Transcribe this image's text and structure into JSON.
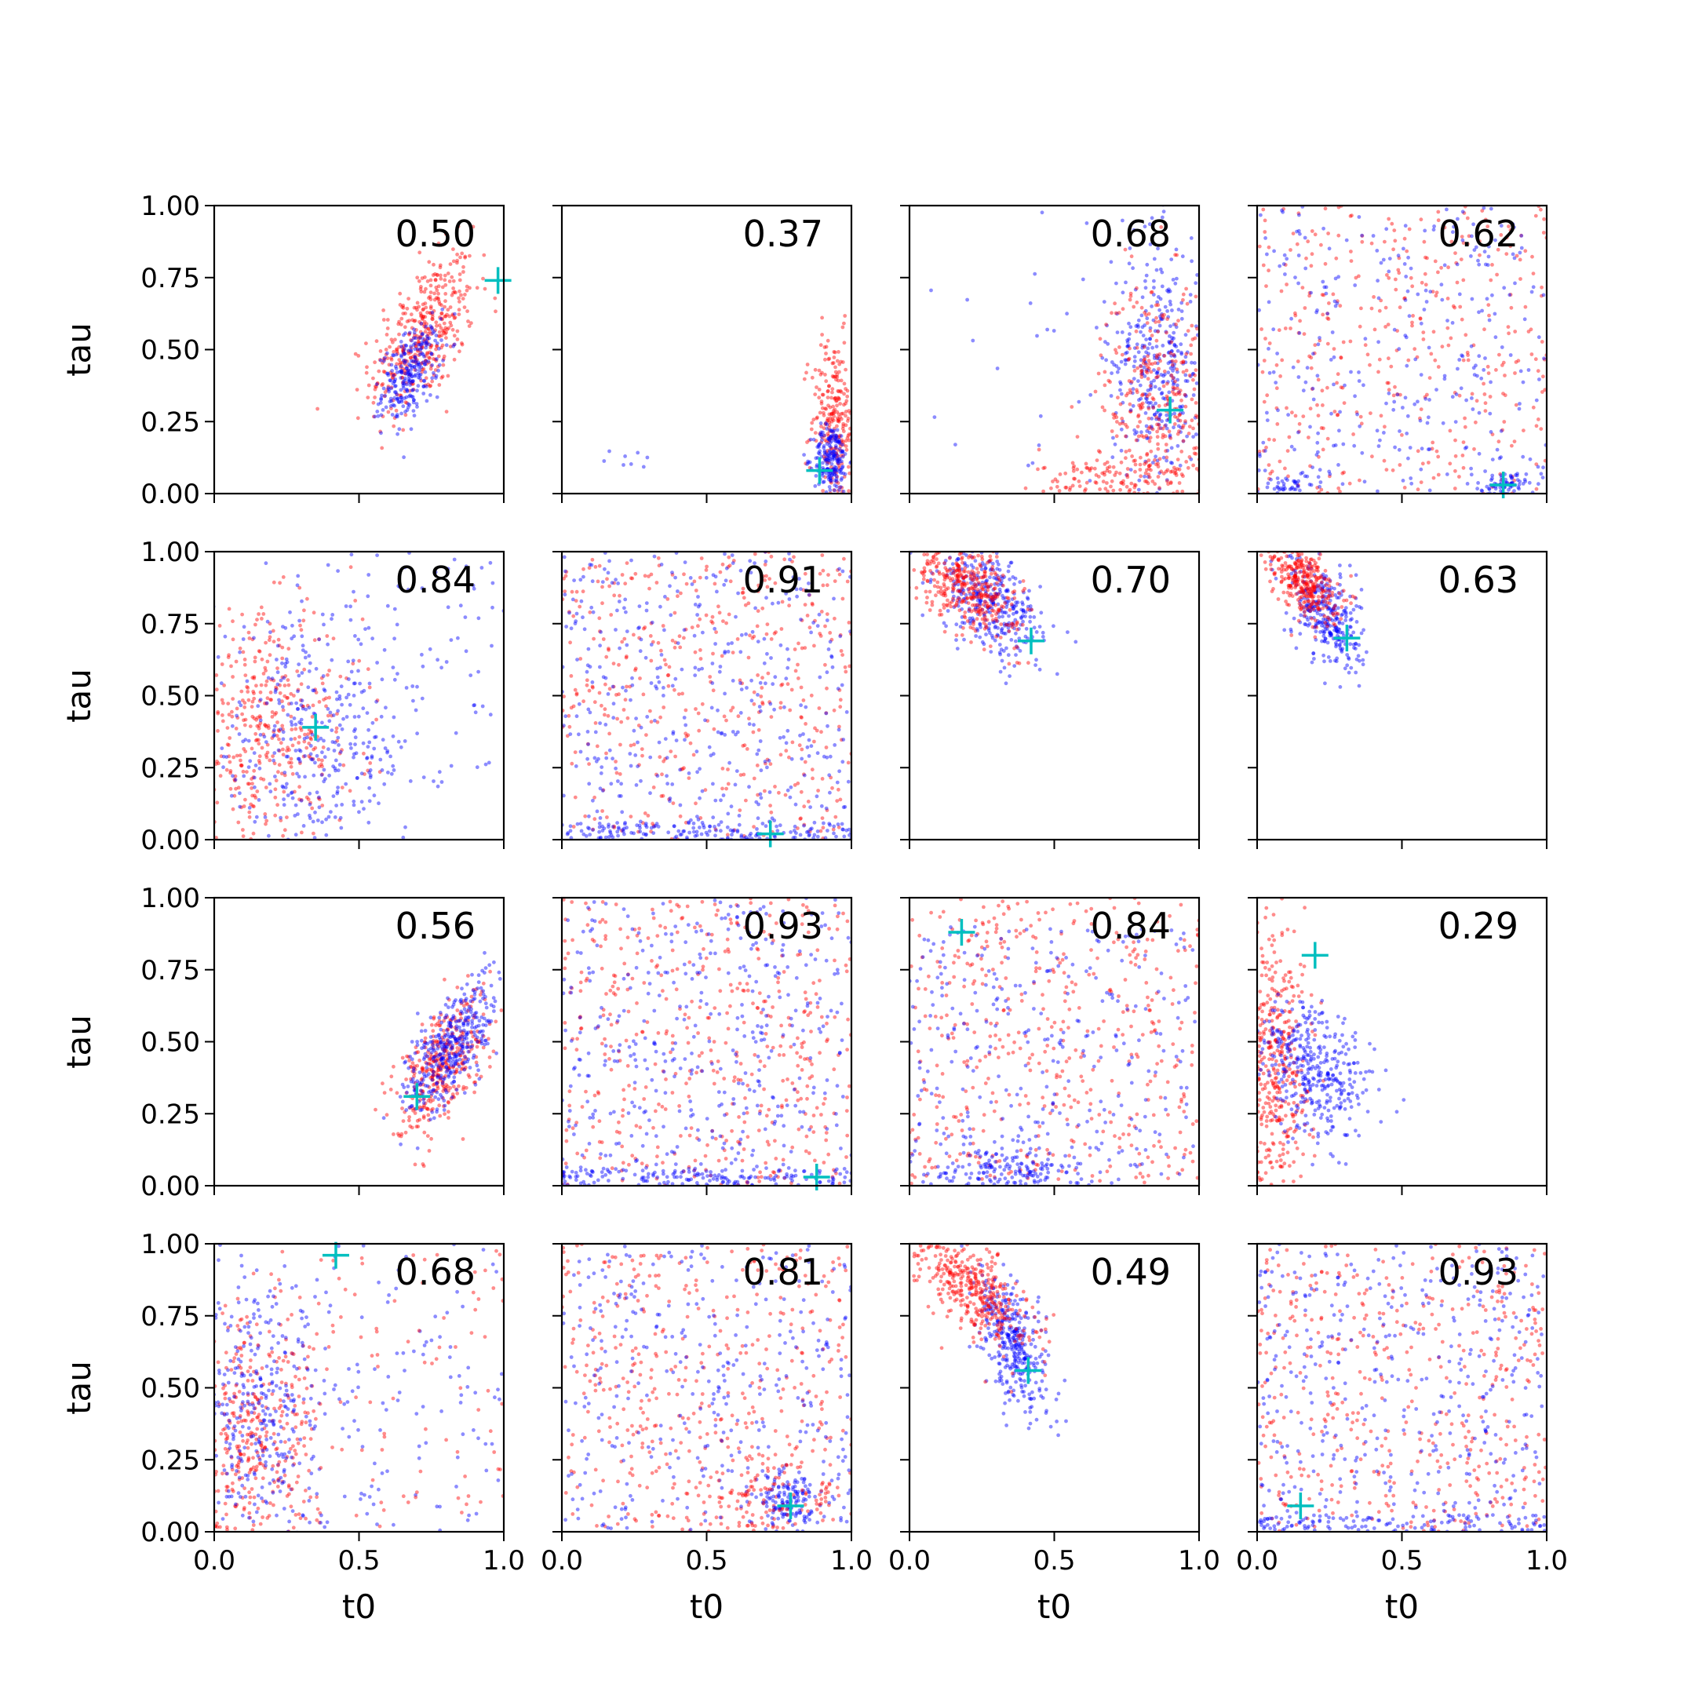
{
  "colors": {
    "series_a": "#0000ff",
    "series_b": "#ff0000",
    "marker": "#00bfbf",
    "axes": "#000000",
    "background": "#ffffff"
  },
  "axes_text": {
    "xlabel": "t0",
    "ylabel": "tau",
    "x_ticks": [
      "0.0",
      "0.5",
      "1.0"
    ],
    "y_ticks": [
      "0.00",
      "0.25",
      "0.50",
      "0.75",
      "1.00"
    ]
  },
  "chart_data": {
    "type": "scatter",
    "layout": "4x4 grid",
    "xlabel": "t0",
    "ylabel": "tau",
    "xlim": [
      0,
      1
    ],
    "ylim": [
      0,
      1
    ],
    "x_ticks": [
      0.0,
      0.5,
      1.0
    ],
    "y_ticks": [
      0.0,
      0.25,
      0.5,
      0.75,
      1.0
    ],
    "grid": false,
    "panels": [
      {
        "row": 0,
        "col": 0,
        "annotation": "0.50",
        "marker": [
          0.98,
          0.74
        ],
        "clusters": [
          {
            "series": "b",
            "center": [
              0.72,
              0.55
            ],
            "spread": [
              0.09,
              0.14
            ],
            "corr": 0.55,
            "n": 420,
            "spread_shape": "gauss"
          },
          {
            "series": "a",
            "center": [
              0.68,
              0.42
            ],
            "spread": [
              0.05,
              0.08
            ],
            "corr": 0.45,
            "n": 260,
            "spread_shape": "gauss"
          }
        ]
      },
      {
        "row": 0,
        "col": 1,
        "annotation": "0.37",
        "marker": [
          0.89,
          0.08
        ],
        "clusters": [
          {
            "series": "b",
            "center": [
              0.94,
              0.25
            ],
            "spread": [
              0.04,
              0.15
            ],
            "corr": 0.0,
            "n": 260,
            "spread_shape": "gauss"
          },
          {
            "series": "a",
            "center": [
              0.93,
              0.12
            ],
            "spread": [
              0.03,
              0.06
            ],
            "corr": 0.0,
            "n": 200,
            "spread_shape": "gauss"
          },
          {
            "series": "a",
            "center": [
              0.2,
              0.14
            ],
            "spread": [
              0.1,
              0.03
            ],
            "corr": 0.0,
            "n": 8,
            "spread_shape": "gauss"
          }
        ]
      },
      {
        "row": 0,
        "col": 2,
        "annotation": "0.68",
        "marker": [
          0.9,
          0.29
        ],
        "clusters": [
          {
            "series": "a",
            "center": [
              0.86,
              0.45
            ],
            "spread": [
              0.08,
              0.22
            ],
            "corr": 0.0,
            "n": 380,
            "spread_shape": "gauss"
          },
          {
            "series": "b",
            "center": [
              0.86,
              0.35
            ],
            "spread": [
              0.1,
              0.2
            ],
            "corr": 0.0,
            "n": 320,
            "spread_shape": "gauss"
          },
          {
            "series": "b",
            "center": [
              0.75,
              0.06
            ],
            "spread": [
              0.15,
              0.05
            ],
            "corr": 0.0,
            "n": 150,
            "spread_shape": "gauss"
          },
          {
            "series": "a",
            "center": [
              0.55,
              0.6
            ],
            "spread": [
              0.25,
              0.3
            ],
            "corr": 0.0,
            "n": 30,
            "spread_shape": "gauss"
          }
        ]
      },
      {
        "row": 0,
        "col": 3,
        "annotation": "0.62",
        "marker": [
          0.85,
          0.03
        ],
        "clusters": [
          {
            "series": "b",
            "center": [
              0.5,
              0.35
            ],
            "spread": [
              0.5,
              0.65
            ],
            "corr": 0.0,
            "n": 500,
            "spread_shape": "uniform"
          },
          {
            "series": "a",
            "center": [
              0.5,
              0.5
            ],
            "spread": [
              0.5,
              0.5
            ],
            "corr": 0.0,
            "n": 300,
            "spread_shape": "uniform"
          },
          {
            "series": "a",
            "center": [
              0.85,
              0.03
            ],
            "spread": [
              0.04,
              0.02
            ],
            "corr": 0.0,
            "n": 70,
            "spread_shape": "gauss"
          },
          {
            "series": "a",
            "center": [
              0.12,
              0.03
            ],
            "spread": [
              0.06,
              0.02
            ],
            "corr": 0.0,
            "n": 40,
            "spread_shape": "gauss"
          }
        ]
      },
      {
        "row": 1,
        "col": 0,
        "annotation": "0.84",
        "marker": [
          0.35,
          0.39
        ],
        "clusters": [
          {
            "series": "b",
            "center": [
              0.18,
              0.38
            ],
            "spread": [
              0.16,
              0.2
            ],
            "corr": 0.0,
            "n": 420,
            "spread_shape": "gauss"
          },
          {
            "series": "a",
            "center": [
              0.33,
              0.3
            ],
            "spread": [
              0.17,
              0.22
            ],
            "corr": 0.0,
            "n": 330,
            "spread_shape": "gauss"
          },
          {
            "series": "a",
            "center": [
              0.6,
              0.6
            ],
            "spread": [
              0.4,
              0.4
            ],
            "corr": 0.0,
            "n": 120,
            "spread_shape": "uniform"
          }
        ]
      },
      {
        "row": 1,
        "col": 1,
        "annotation": "0.91",
        "marker": [
          0.72,
          0.02
        ],
        "clusters": [
          {
            "series": "b",
            "center": [
              0.5,
              0.5
            ],
            "spread": [
              0.5,
              0.5
            ],
            "corr": 0.0,
            "n": 450,
            "spread_shape": "uniform"
          },
          {
            "series": "a",
            "center": [
              0.5,
              0.5
            ],
            "spread": [
              0.5,
              0.5
            ],
            "corr": 0.0,
            "n": 400,
            "spread_shape": "uniform"
          },
          {
            "series": "a",
            "center": [
              0.5,
              0.03
            ],
            "spread": [
              0.5,
              0.03
            ],
            "corr": 0.0,
            "n": 150,
            "spread_shape": "uniform"
          }
        ]
      },
      {
        "row": 1,
        "col": 2,
        "annotation": "0.70",
        "marker": [
          0.42,
          0.69
        ],
        "clusters": [
          {
            "series": "a",
            "center": [
              0.28,
              0.82
            ],
            "spread": [
              0.09,
              0.1
            ],
            "corr": -0.5,
            "n": 360,
            "spread_shape": "gauss"
          },
          {
            "series": "b",
            "center": [
              0.2,
              0.88
            ],
            "spread": [
              0.09,
              0.08
            ],
            "corr": -0.5,
            "n": 380,
            "spread_shape": "gauss"
          }
        ]
      },
      {
        "row": 1,
        "col": 3,
        "annotation": "0.63",
        "marker": [
          0.31,
          0.7
        ],
        "clusters": [
          {
            "series": "a",
            "center": [
              0.24,
              0.78
            ],
            "spread": [
              0.06,
              0.1
            ],
            "corr": -0.5,
            "n": 320,
            "spread_shape": "gauss"
          },
          {
            "series": "b",
            "center": [
              0.16,
              0.9
            ],
            "spread": [
              0.06,
              0.07
            ],
            "corr": -0.5,
            "n": 340,
            "spread_shape": "gauss"
          }
        ]
      },
      {
        "row": 2,
        "col": 0,
        "annotation": "0.56",
        "marker": [
          0.7,
          0.31
        ],
        "clusters": [
          {
            "series": "b",
            "center": [
              0.78,
              0.42
            ],
            "spread": [
              0.08,
              0.12
            ],
            "corr": 0.6,
            "n": 380,
            "spread_shape": "gauss"
          },
          {
            "series": "a",
            "center": [
              0.82,
              0.48
            ],
            "spread": [
              0.08,
              0.12
            ],
            "corr": 0.65,
            "n": 380,
            "spread_shape": "gauss"
          }
        ]
      },
      {
        "row": 2,
        "col": 1,
        "annotation": "0.93",
        "marker": [
          0.88,
          0.03
        ],
        "clusters": [
          {
            "series": "b",
            "center": [
              0.5,
              0.5
            ],
            "spread": [
              0.5,
              0.5
            ],
            "corr": 0.0,
            "n": 450,
            "spread_shape": "uniform"
          },
          {
            "series": "a",
            "center": [
              0.5,
              0.5
            ],
            "spread": [
              0.5,
              0.5
            ],
            "corr": 0.0,
            "n": 400,
            "spread_shape": "uniform"
          },
          {
            "series": "a",
            "center": [
              0.5,
              0.03
            ],
            "spread": [
              0.5,
              0.03
            ],
            "corr": 0.0,
            "n": 150,
            "spread_shape": "uniform"
          }
        ]
      },
      {
        "row": 2,
        "col": 2,
        "annotation": "0.84",
        "marker": [
          0.18,
          0.88
        ],
        "clusters": [
          {
            "series": "b",
            "center": [
              0.5,
              0.5
            ],
            "spread": [
              0.5,
              0.5
            ],
            "corr": 0.0,
            "n": 450,
            "spread_shape": "uniform"
          },
          {
            "series": "a",
            "center": [
              0.5,
              0.45
            ],
            "spread": [
              0.5,
              0.45
            ],
            "corr": 0.0,
            "n": 300,
            "spread_shape": "uniform"
          },
          {
            "series": "a",
            "center": [
              0.35,
              0.06
            ],
            "spread": [
              0.12,
              0.05
            ],
            "corr": 0.0,
            "n": 180,
            "spread_shape": "gauss"
          }
        ]
      },
      {
        "row": 2,
        "col": 3,
        "annotation": "0.29",
        "marker": [
          0.2,
          0.8
        ],
        "clusters": [
          {
            "series": "b",
            "center": [
              0.07,
              0.42
            ],
            "spread": [
              0.06,
              0.25
            ],
            "corr": 0.0,
            "n": 420,
            "spread_shape": "gauss"
          },
          {
            "series": "a",
            "center": [
              0.2,
              0.4
            ],
            "spread": [
              0.1,
              0.12
            ],
            "corr": -0.3,
            "n": 380,
            "spread_shape": "gauss"
          }
        ]
      },
      {
        "row": 3,
        "col": 0,
        "annotation": "0.68",
        "marker": [
          0.42,
          0.96
        ],
        "clusters": [
          {
            "series": "b",
            "center": [
              0.12,
              0.3
            ],
            "spread": [
              0.12,
              0.22
            ],
            "corr": 0.0,
            "n": 380,
            "spread_shape": "gauss"
          },
          {
            "series": "a",
            "center": [
              0.15,
              0.35
            ],
            "spread": [
              0.13,
              0.22
            ],
            "corr": 0.0,
            "n": 300,
            "spread_shape": "gauss"
          },
          {
            "series": "a",
            "center": [
              0.5,
              0.5
            ],
            "spread": [
              0.5,
              0.5
            ],
            "corr": 0.0,
            "n": 180,
            "spread_shape": "uniform"
          },
          {
            "series": "b",
            "center": [
              0.5,
              0.5
            ],
            "spread": [
              0.5,
              0.5
            ],
            "corr": 0.0,
            "n": 120,
            "spread_shape": "uniform"
          }
        ]
      },
      {
        "row": 3,
        "col": 1,
        "annotation": "0.81",
        "marker": [
          0.79,
          0.09
        ],
        "clusters": [
          {
            "series": "b",
            "center": [
              0.5,
              0.5
            ],
            "spread": [
              0.5,
              0.5
            ],
            "corr": 0.0,
            "n": 420,
            "spread_shape": "uniform"
          },
          {
            "series": "a",
            "center": [
              0.5,
              0.5
            ],
            "spread": [
              0.5,
              0.5
            ],
            "corr": 0.0,
            "n": 350,
            "spread_shape": "uniform"
          },
          {
            "series": "a",
            "center": [
              0.78,
              0.1
            ],
            "spread": [
              0.05,
              0.05
            ],
            "corr": 0.0,
            "n": 140,
            "spread_shape": "gauss"
          },
          {
            "series": "b",
            "center": [
              0.7,
              0.12
            ],
            "spread": [
              0.12,
              0.08
            ],
            "corr": 0.0,
            "n": 100,
            "spread_shape": "gauss"
          }
        ]
      },
      {
        "row": 3,
        "col": 2,
        "annotation": "0.49",
        "marker": [
          0.41,
          0.56
        ],
        "clusters": [
          {
            "series": "a",
            "center": [
              0.36,
              0.65
            ],
            "spread": [
              0.06,
              0.12
            ],
            "corr": -0.55,
            "n": 360,
            "spread_shape": "gauss"
          },
          {
            "series": "b",
            "center": [
              0.22,
              0.85
            ],
            "spread": [
              0.1,
              0.1
            ],
            "corr": -0.65,
            "n": 400,
            "spread_shape": "gauss"
          }
        ]
      },
      {
        "row": 3,
        "col": 3,
        "annotation": "0.93",
        "marker": [
          0.15,
          0.09
        ],
        "clusters": [
          {
            "series": "b",
            "center": [
              0.5,
              0.5
            ],
            "spread": [
              0.5,
              0.5
            ],
            "corr": 0.0,
            "n": 450,
            "spread_shape": "uniform"
          },
          {
            "series": "a",
            "center": [
              0.5,
              0.5
            ],
            "spread": [
              0.5,
              0.5
            ],
            "corr": 0.0,
            "n": 400,
            "spread_shape": "uniform"
          },
          {
            "series": "a",
            "center": [
              0.5,
              0.03
            ],
            "spread": [
              0.5,
              0.03
            ],
            "corr": 0.0,
            "n": 120,
            "spread_shape": "uniform"
          }
        ]
      }
    ]
  }
}
